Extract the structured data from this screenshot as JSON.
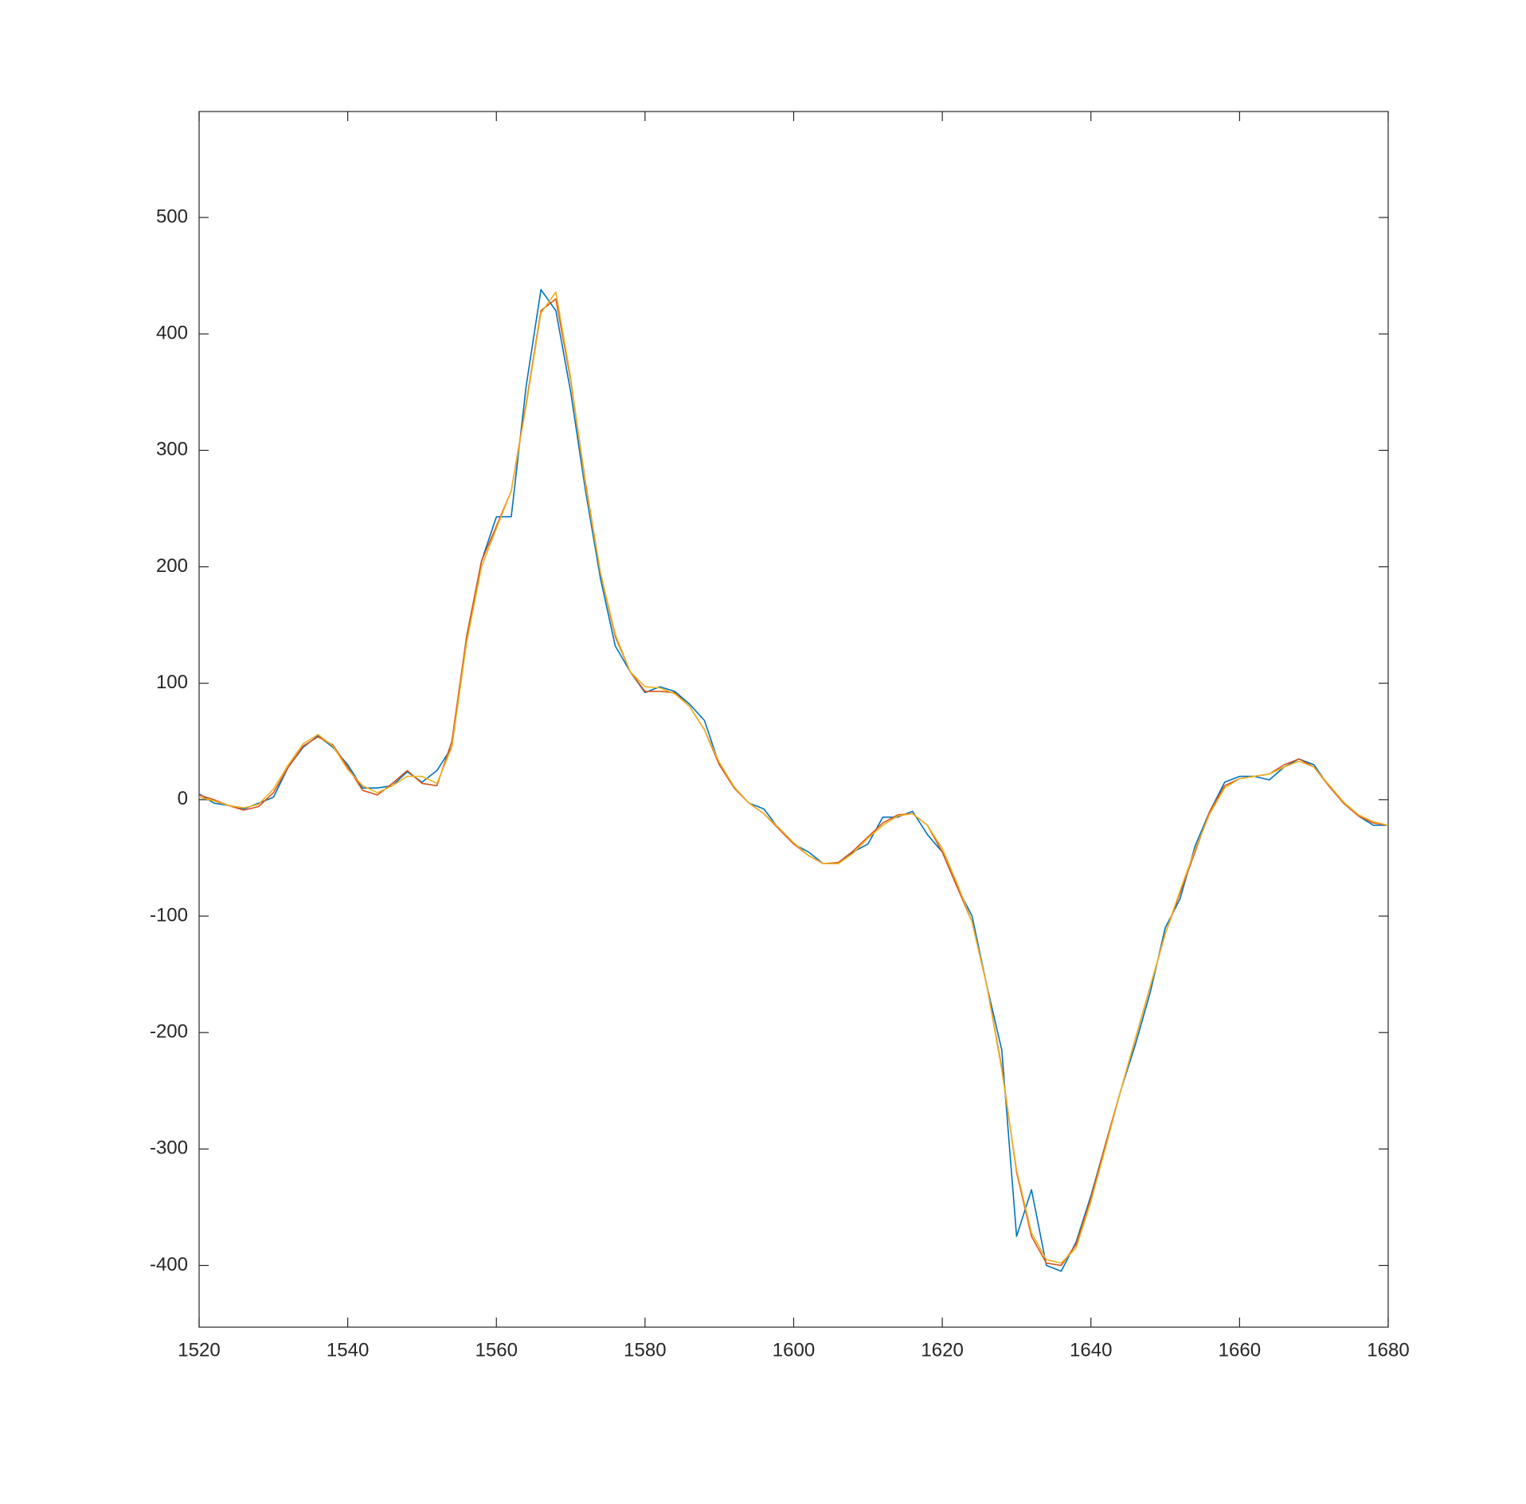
{
  "chart_data": {
    "type": "line",
    "x": [
      1520,
      1522,
      1524,
      1526,
      1528,
      1530,
      1532,
      1534,
      1536,
      1538,
      1540,
      1542,
      1544,
      1546,
      1548,
      1550,
      1552,
      1554,
      1556,
      1558,
      1560,
      1562,
      1564,
      1566,
      1568,
      1570,
      1572,
      1574,
      1576,
      1578,
      1580,
      1582,
      1584,
      1586,
      1588,
      1590,
      1592,
      1594,
      1596,
      1598,
      1600,
      1602,
      1604,
      1606,
      1608,
      1610,
      1612,
      1614,
      1616,
      1618,
      1620,
      1622,
      1624,
      1626,
      1628,
      1630,
      1632,
      1634,
      1636,
      1638,
      1640,
      1642,
      1644,
      1646,
      1648,
      1650,
      1652,
      1654,
      1656,
      1658,
      1660,
      1662,
      1664,
      1666,
      1668,
      1670,
      1672,
      1674,
      1676,
      1678,
      1680
    ],
    "series": [
      {
        "color": "#0072BD",
        "values": [
          5,
          -3,
          -5,
          -8,
          -3,
          2,
          28,
          45,
          55,
          45,
          30,
          10,
          10,
          12,
          24,
          15,
          25,
          45,
          140,
          205,
          243,
          243,
          355,
          438,
          420,
          350,
          265,
          190,
          132,
          110,
          92,
          97,
          93,
          82,
          68,
          30,
          10,
          -3,
          -8,
          -25,
          -38,
          -45,
          -55,
          -55,
          -45,
          -38,
          -15,
          -15,
          -10,
          -30,
          -45,
          -75,
          -100,
          -160,
          -215,
          -375,
          -335,
          -400,
          -405,
          -380,
          -340,
          -295,
          -250,
          -210,
          -165,
          -110,
          -85,
          -40,
          -10,
          15,
          20,
          20,
          17,
          28,
          35,
          30,
          12,
          -3,
          -14,
          -22,
          -22
        ]
      },
      {
        "color": "#D95319",
        "values": [
          4,
          0,
          -5,
          -9,
          -6,
          6,
          28,
          46,
          54,
          47,
          28,
          8,
          4,
          14,
          25,
          14,
          12,
          50,
          140,
          205,
          235,
          265,
          340,
          420,
          430,
          360,
          272,
          195,
          140,
          110,
          93,
          93,
          92,
          80,
          60,
          30,
          10,
          -3,
          -12,
          -25,
          -38,
          -48,
          -55,
          -54,
          -44,
          -32,
          -20,
          -13,
          -12,
          -22,
          -45,
          -75,
          -105,
          -160,
          -230,
          -320,
          -375,
          -398,
          -400,
          -382,
          -342,
          -295,
          -250,
          -205,
          -160,
          -115,
          -80,
          -45,
          -10,
          12,
          18,
          20,
          22,
          30,
          35,
          28,
          12,
          -3,
          -14,
          -20,
          -22
        ]
      },
      {
        "color": "#EDB120",
        "values": [
          2,
          -1,
          -5,
          -7,
          -4,
          9,
          30,
          48,
          56,
          46,
          26,
          12,
          6,
          12,
          20,
          20,
          14,
          45,
          135,
          200,
          233,
          265,
          338,
          418,
          436,
          362,
          270,
          195,
          142,
          110,
          97,
          96,
          91,
          80,
          60,
          32,
          11,
          -3,
          -12,
          -24,
          -37,
          -48,
          -55,
          -55,
          -46,
          -33,
          -22,
          -14,
          -12,
          -22,
          -42,
          -72,
          -105,
          -160,
          -232,
          -318,
          -372,
          -395,
          -398,
          -385,
          -345,
          -298,
          -250,
          -205,
          -160,
          -115,
          -78,
          -43,
          -12,
          10,
          18,
          20,
          22,
          28,
          33,
          28,
          13,
          -2,
          -13,
          -19,
          -22
        ]
      }
    ],
    "xlim": [
      1520,
      1680
    ],
    "ylim": [
      -453,
      591
    ],
    "xticks": [
      1520,
      1540,
      1560,
      1580,
      1600,
      1620,
      1640,
      1660,
      1680
    ],
    "yticks": [
      -400,
      -300,
      -200,
      -100,
      0,
      100,
      200,
      300,
      400,
      500
    ],
    "grid": false
  }
}
